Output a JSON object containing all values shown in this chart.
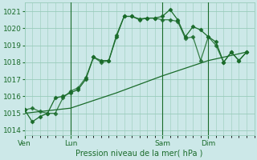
{
  "background_color": "#cce8e8",
  "grid_color": "#99ccbb",
  "line_color": "#1a6b2a",
  "title": "Pression niveau de la mer( hPa )",
  "ylabel_ticks": [
    1014,
    1015,
    1016,
    1017,
    1018,
    1019,
    1020,
    1021
  ],
  "ylim": [
    1013.7,
    1021.5
  ],
  "x_tick_labels": [
    "Ven",
    "Lun",
    "Sam",
    "Dim"
  ],
  "x_tick_positions": [
    0,
    6,
    18,
    24
  ],
  "xlim": [
    0,
    30
  ],
  "series1_x": [
    0,
    1,
    2,
    3,
    4,
    5,
    6,
    7,
    8,
    9,
    10,
    11,
    12,
    13,
    14,
    15,
    16,
    17,
    18,
    19,
    20,
    21,
    22,
    23,
    24,
    25,
    26,
    27,
    28,
    29
  ],
  "series1_y": [
    1015.2,
    1014.5,
    1014.8,
    1015.0,
    1015.9,
    1016.0,
    1016.2,
    1016.4,
    1017.0,
    1018.3,
    1018.1,
    1018.1,
    1019.5,
    1020.7,
    1020.7,
    1020.55,
    1020.6,
    1020.6,
    1020.7,
    1021.1,
    1020.5,
    1019.5,
    1020.1,
    1019.9,
    1019.5,
    1019.2,
    1018.0,
    1018.6,
    1018.1,
    1018.6
  ],
  "series2_x": [
    0,
    1,
    2,
    3,
    4,
    5,
    6,
    7,
    8,
    9,
    10,
    11,
    12,
    13,
    14,
    15,
    16,
    17,
    18,
    19,
    20,
    21,
    22,
    23,
    24,
    25,
    26,
    27,
    28,
    29
  ],
  "series2_y": [
    1015.2,
    1015.3,
    1015.1,
    1015.0,
    1015.0,
    1015.9,
    1016.3,
    1016.5,
    1017.1,
    1018.3,
    1018.0,
    1018.1,
    1019.6,
    1020.7,
    1020.7,
    1020.5,
    1020.6,
    1020.6,
    1020.5,
    1020.5,
    1020.4,
    1019.4,
    1019.5,
    1018.1,
    1019.5,
    1019.0,
    1018.0,
    1018.6,
    1018.1,
    1018.6
  ],
  "series3_x": [
    0,
    6,
    12,
    18,
    24,
    29
  ],
  "series3_y": [
    1015.0,
    1015.3,
    1016.2,
    1017.2,
    1018.1,
    1018.6
  ],
  "vlines_x": [
    6,
    18,
    24
  ],
  "marker_size": 3,
  "figsize": [
    3.2,
    2.0
  ],
  "dpi": 100
}
